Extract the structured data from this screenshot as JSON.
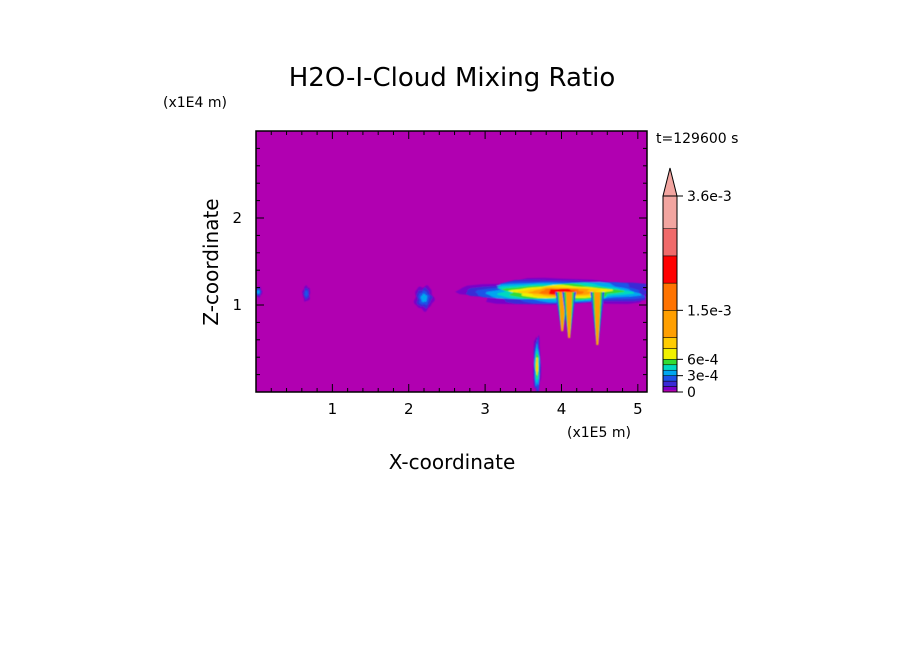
{
  "chart_data": {
    "type": "heatmap",
    "title": "H2O-I-Cloud Mixing Ratio",
    "xlabel": "X-coordinate",
    "ylabel": "Z-coordinate",
    "x_unit": "(x1E5 m)",
    "y_unit": "(x1E4 m)",
    "time_label": "t=129600 s",
    "xlim": [
      0,
      5.12
    ],
    "ylim": [
      0,
      3.0
    ],
    "x_ticks": [
      "1",
      "2",
      "3",
      "4",
      "5"
    ],
    "y_ticks": [
      "1",
      "2"
    ],
    "background_color": "#b100b1",
    "colorbar": {
      "tick_labels": [
        "0",
        "3e-4",
        "6e-4",
        "1.5e-3",
        "3.6e-3"
      ],
      "levels": [
        0,
        0.0001,
        0.0002,
        0.0003,
        0.0004,
        0.0005,
        0.0006,
        0.0008,
        0.001,
        0.0015,
        0.002,
        0.0025,
        0.003,
        0.0036
      ],
      "colors": [
        "#b100b1",
        "#7a00c8",
        "#3a2bd6",
        "#1c52e8",
        "#00a7f0",
        "#00d9c0",
        "#33dd33",
        "#f0f000",
        "#ffcc00",
        "#ff9f00",
        "#ff7300",
        "#ff0000",
        "#f06a6a",
        "#f2a5a0"
      ],
      "extend": "max"
    },
    "features": [
      {
        "x_center": 0.03,
        "z_center": 1.15,
        "x_width": 0.1,
        "z_height": 0.12,
        "max_level": 4
      },
      {
        "x_center": 0.66,
        "z_center": 1.13,
        "x_width": 0.1,
        "z_height": 0.18,
        "max_level": 3
      },
      {
        "x_center": 2.2,
        "z_center": 1.08,
        "x_width": 0.25,
        "z_height": 0.28,
        "max_level": 4
      },
      {
        "x_center": 4.0,
        "z_center": 1.15,
        "x_width": 2.6,
        "z_height": 0.3,
        "max_level": 11
      },
      {
        "x_center": 3.68,
        "z_center": 0.3,
        "x_width": 0.1,
        "z_height": 0.7,
        "max_level": 8
      }
    ]
  }
}
